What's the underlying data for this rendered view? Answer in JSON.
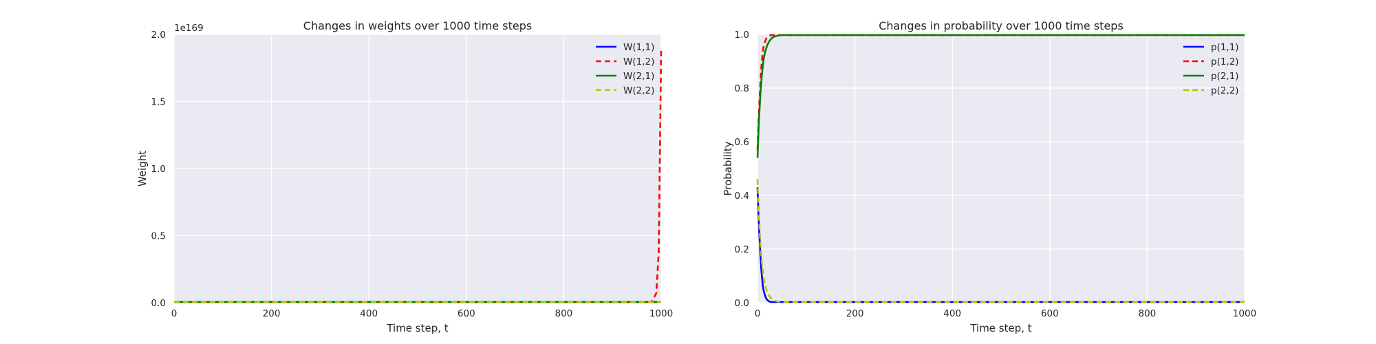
{
  "chart_data": [
    {
      "type": "line",
      "title": "Changes in weights over 1000 time steps",
      "xlabel": "Time step, t",
      "ylabel": "Weight",
      "y_offset_label": "1e169",
      "xlim": [
        0,
        1000
      ],
      "ylim": [
        0,
        2.0
      ],
      "xticks": [
        0,
        200,
        400,
        600,
        800,
        1000
      ],
      "yticks": [
        0.0,
        0.5,
        1.0,
        1.5,
        2.0
      ],
      "ytick_labels": [
        "0.0",
        "0.5",
        "1.0",
        "1.5",
        "2.0"
      ],
      "grid": true,
      "legend_position": "upper right",
      "series": [
        {
          "name": "W(1,1)",
          "color": "#0000ff",
          "style": "solid",
          "x": [
            0,
            1000
          ],
          "y": [
            0,
            0
          ]
        },
        {
          "name": "W(1,2)",
          "color": "#ff0000",
          "style": "dashed",
          "x": [
            0,
            900,
            960,
            980,
            990,
            995,
            1000
          ],
          "y": [
            0,
            0,
            0.0001,
            0.003,
            0.07,
            0.38,
            1.88
          ]
        },
        {
          "name": "W(2,1)",
          "color": "#008000",
          "style": "solid",
          "x": [
            0,
            1000
          ],
          "y": [
            0,
            0
          ]
        },
        {
          "name": "W(2,2)",
          "color": "#bfbf00",
          "style": "dashed",
          "x": [
            0,
            1000
          ],
          "y": [
            0,
            0
          ]
        }
      ]
    },
    {
      "type": "line",
      "title": "Changes in probability over 1000 time steps",
      "xlabel": "Time step, t",
      "ylabel": "Probability",
      "xlim": [
        0,
        1000
      ],
      "ylim": [
        0,
        1.0
      ],
      "xticks": [
        0,
        200,
        400,
        600,
        800,
        1000
      ],
      "yticks": [
        0.0,
        0.2,
        0.4,
        0.6,
        0.8,
        1.0
      ],
      "ytick_labels": [
        "0.0",
        "0.2",
        "0.4",
        "0.6",
        "0.8",
        "1.0"
      ],
      "grid": true,
      "legend_position": "upper right",
      "series": [
        {
          "name": "p(1,1)",
          "color": "#0000ff",
          "style": "solid",
          "x": [
            0,
            2,
            4,
            6,
            8,
            10,
            12,
            15,
            18,
            22,
            26,
            30,
            40,
            60,
            1000
          ],
          "y": [
            0.43,
            0.33,
            0.25,
            0.18,
            0.12,
            0.08,
            0.05,
            0.03,
            0.015,
            0.007,
            0.003,
            0.001,
            0.0,
            0.0,
            0.0
          ]
        },
        {
          "name": "p(1,2)",
          "color": "#ff0000",
          "style": "dashed",
          "x": [
            0,
            2,
            4,
            6,
            8,
            10,
            12,
            15,
            18,
            22,
            26,
            30,
            40,
            60,
            1000
          ],
          "y": [
            0.57,
            0.67,
            0.75,
            0.82,
            0.88,
            0.92,
            0.95,
            0.97,
            0.985,
            0.993,
            0.997,
            0.999,
            1.0,
            1.0,
            1.0
          ]
        },
        {
          "name": "p(2,1)",
          "color": "#008000",
          "style": "solid",
          "x": [
            0,
            3,
            6,
            9,
            12,
            15,
            20,
            25,
            30,
            35,
            40,
            50,
            60,
            80,
            1000
          ],
          "y": [
            0.54,
            0.68,
            0.78,
            0.85,
            0.9,
            0.93,
            0.96,
            0.977,
            0.987,
            0.992,
            0.995,
            0.998,
            0.999,
            1.0,
            1.0
          ]
        },
        {
          "name": "p(2,2)",
          "color": "#bfbf00",
          "style": "dashed",
          "x": [
            0,
            3,
            6,
            9,
            12,
            15,
            20,
            25,
            30,
            35,
            40,
            50,
            60,
            80,
            1000
          ],
          "y": [
            0.46,
            0.32,
            0.22,
            0.15,
            0.1,
            0.07,
            0.04,
            0.023,
            0.013,
            0.008,
            0.005,
            0.002,
            0.001,
            0.0,
            0.0
          ]
        }
      ]
    }
  ]
}
